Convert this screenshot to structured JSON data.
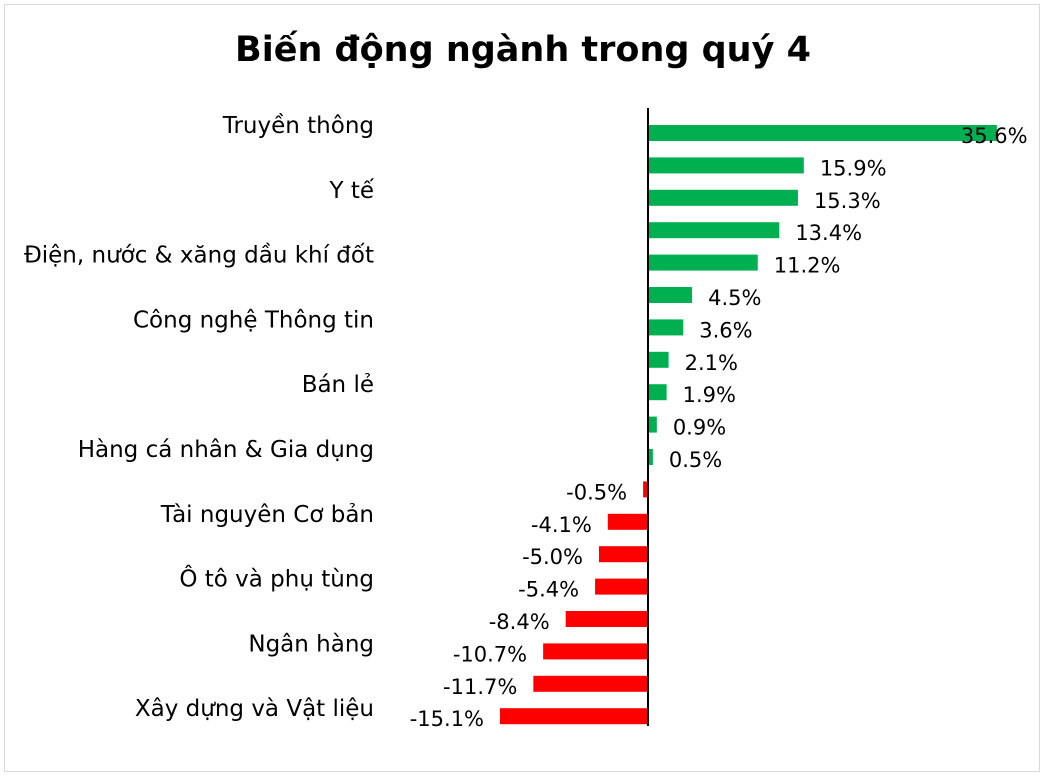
{
  "chart_data": {
    "type": "bar",
    "orientation": "horizontal",
    "title": "Biến động ngành trong quý 4",
    "xlabel": "",
    "ylabel": "",
    "unit": "%",
    "categories": [
      "Truyền thông",
      "",
      "Y tế",
      "",
      "Điện, nước & xăng dầu khí đốt",
      "",
      "Công nghệ Thông tin",
      "",
      "Bán lẻ",
      "",
      "Hàng cá nhân & Gia dụng",
      "",
      "Tài nguyên Cơ bản",
      "",
      "Ô tô và phụ tùng",
      "",
      "Ngân hàng",
      "",
      "Xây dựng và Vật liệu"
    ],
    "values": [
      35.6,
      15.9,
      15.3,
      13.4,
      11.2,
      4.5,
      3.6,
      2.1,
      1.9,
      0.9,
      0.5,
      -0.5,
      -4.1,
      -5.0,
      -5.4,
      -8.4,
      -10.7,
      -11.7,
      -15.1
    ],
    "value_labels": [
      "35.6%",
      "15.9%",
      "15.3%",
      "13.4%",
      "11.2%",
      "4.5%",
      "3.6%",
      "2.1%",
      "1.9%",
      "0.9%",
      "0.5%",
      "-0.5%",
      "-4.1%",
      "-5.0%",
      "-5.4%",
      "-8.4%",
      "-10.7%",
      "-11.7%",
      "-15.1%"
    ],
    "colors": {
      "positive": "#00b050",
      "negative": "#ff0000",
      "axis": "#000000"
    },
    "legend": "none",
    "grid": false
  }
}
